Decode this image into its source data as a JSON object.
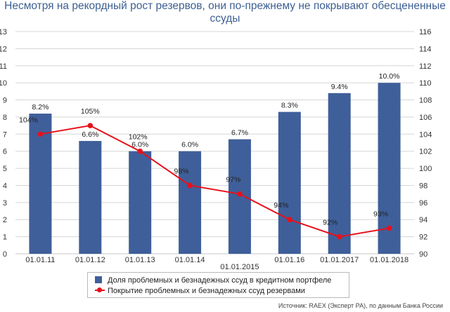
{
  "title": "Несмотря на рекордный рост резервов, они по-прежнему не покрывают обесцененные ссуды",
  "colors": {
    "bar": "#3f5f9a",
    "line": "#e8101a",
    "title": "#3d5f92",
    "grid": "#d5d5d5"
  },
  "legend": {
    "bar_label": "Доля проблемных и безнадежных ссуд в кредитном портфеле",
    "line_label": "Покрытие проблемных и безнадежных ссуд резервами"
  },
  "source": "Источник: RAEX (Эксперт РА), по данным Банка России",
  "chart_data": {
    "type": "bar",
    "categories": [
      "01.01.11",
      "01.01.12",
      "01.01.13",
      "01.01.14",
      "01.01.2015",
      "01.01.16",
      "01.01.2017",
      "01.01.2018"
    ],
    "left_axis": {
      "ylim": [
        0,
        13
      ],
      "ticks": [
        "0",
        "1",
        "2",
        "3",
        "4",
        "5",
        "6",
        "7",
        "8",
        "9",
        "10",
        "11",
        "12",
        "13"
      ]
    },
    "right_axis": {
      "ylim": [
        90,
        116
      ],
      "ticks": [
        "90",
        "92",
        "94",
        "96",
        "98",
        "100",
        "102",
        "104",
        "106",
        "108",
        "110",
        "112",
        "114",
        "116"
      ]
    },
    "series": [
      {
        "name": "Доля проблемных и безнадежных ссуд в кредитном портфеле",
        "type": "bar",
        "axis": "left",
        "values": [
          8.2,
          6.6,
          6.0,
          6.0,
          6.7,
          8.3,
          9.4,
          10.0
        ],
        "labels": [
          "8.2%",
          "6.6%",
          "6.0%",
          "6.0%",
          "6.7%",
          "8.3%",
          "9.4%",
          "10.0%"
        ]
      },
      {
        "name": "Покрытие проблемных и безнадежных ссуд резервами",
        "type": "line",
        "axis": "right",
        "values": [
          104,
          105,
          102,
          98,
          97,
          94,
          92,
          93
        ],
        "labels": [
          "104%",
          "105%",
          "102%",
          "98%",
          "97%",
          "94%",
          "92%",
          "93%"
        ]
      }
    ],
    "grid": true
  }
}
